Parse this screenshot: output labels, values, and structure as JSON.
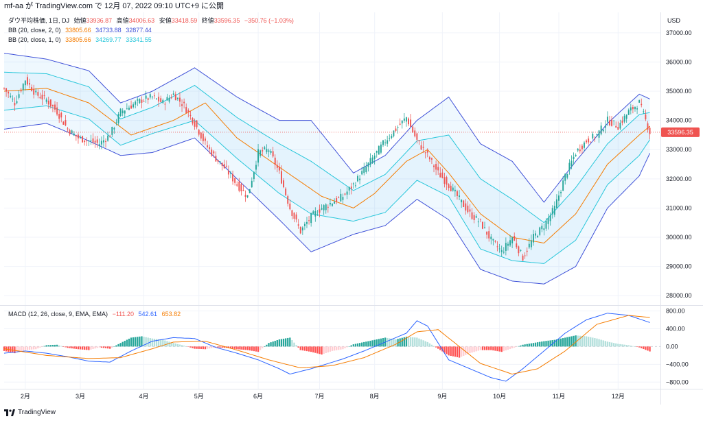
{
  "header": {
    "text": "mf-aa が TradingView.com で 12月 07, 2022 09:10 UTC+9 に公開"
  },
  "legend": {
    "main": {
      "name": "ダウ平均株価, 1日, DJ",
      "open_label": "始値",
      "open": "33936.87",
      "high_label": "高値",
      "high": "34006.63",
      "low_label": "安値",
      "low": "33418.59",
      "close_label": "終値",
      "close": "33596.35",
      "change": "−350.76 (−1.03%)"
    },
    "bb2": {
      "name": "BB (20, close, 2, 0)",
      "basis": "33805.66",
      "upper": "34733.88",
      "lower": "32877.44"
    },
    "bb1": {
      "name": "BB (20, close, 1, 0)",
      "basis": "33805.66",
      "upper": "34269.77",
      "lower": "33341.55"
    },
    "macd": {
      "name": "MACD (12, 26, close, 9, EMA, EMA)",
      "hist": "−111.20",
      "macd": "542.61",
      "signal": "653.82"
    }
  },
  "colors": {
    "up": "#26a69a",
    "down": "#ef5350",
    "bb_outer": "#3f51d8",
    "bb_inner": "#26c6da",
    "basis": "#f57c00",
    "macd": "#2962ff",
    "signal": "#f57c00",
    "hist_up": "#26a69a",
    "hist_up_light": "#b2dfdb",
    "hist_down": "#ff5252",
    "hist_down_light": "#ffcdd2",
    "price_tag": "#ef5350"
  },
  "chart_data": [
    {
      "type": "candlestick",
      "title": "ダウ平均株価, 1日, DJ",
      "ylabel": "USD",
      "ylim": [
        27700,
        37700
      ],
      "y_ticks": [
        "37000.00",
        "36000.00",
        "35000.00",
        "34000.00",
        "33000.00",
        "32000.00",
        "31000.00",
        "30000.00",
        "29000.00",
        "28000.00"
      ],
      "x_ticks": [
        "2月",
        "3月",
        "4月",
        "5月",
        "6月",
        "7月",
        "8月",
        "9月",
        "10月",
        "11月",
        "12月"
      ],
      "last_price": "33596.35",
      "close_path": [
        [
          0,
          35100
        ],
        [
          5,
          34600
        ],
        [
          10,
          35400
        ],
        [
          15,
          34900
        ],
        [
          20,
          34700
        ],
        [
          25,
          34300
        ],
        [
          30,
          33700
        ],
        [
          35,
          33400
        ],
        [
          40,
          33300
        ],
        [
          45,
          33200
        ],
        [
          50,
          33500
        ],
        [
          55,
          34300
        ],
        [
          60,
          34500
        ],
        [
          65,
          34700
        ],
        [
          70,
          34800
        ],
        [
          75,
          34600
        ],
        [
          80,
          34900
        ],
        [
          85,
          34500
        ],
        [
          90,
          33900
        ],
        [
          95,
          33200
        ],
        [
          100,
          32700
        ],
        [
          105,
          32300
        ],
        [
          110,
          31800
        ],
        [
          115,
          31400
        ],
        [
          120,
          32900
        ],
        [
          125,
          33000
        ],
        [
          130,
          32200
        ],
        [
          135,
          31000
        ],
        [
          140,
          30200
        ],
        [
          145,
          30700
        ],
        [
          150,
          31000
        ],
        [
          155,
          31200
        ],
        [
          160,
          31400
        ],
        [
          165,
          31800
        ],
        [
          170,
          32300
        ],
        [
          175,
          32800
        ],
        [
          180,
          33300
        ],
        [
          185,
          33700
        ],
        [
          190,
          34100
        ],
        [
          195,
          33300
        ],
        [
          200,
          32800
        ],
        [
          205,
          32200
        ],
        [
          210,
          31800
        ],
        [
          215,
          31300
        ],
        [
          220,
          30800
        ],
        [
          225,
          30500
        ],
        [
          230,
          29900
        ],
        [
          235,
          29500
        ],
        [
          240,
          30000
        ],
        [
          245,
          29300
        ],
        [
          250,
          30000
        ],
        [
          255,
          30400
        ],
        [
          260,
          31000
        ],
        [
          265,
          32100
        ],
        [
          270,
          32900
        ],
        [
          275,
          33300
        ],
        [
          280,
          33500
        ],
        [
          285,
          34000
        ],
        [
          290,
          33800
        ],
        [
          295,
          34300
        ],
        [
          300,
          34600
        ],
        [
          305,
          33596
        ]
      ],
      "bb_basis": [
        [
          0,
          35000
        ],
        [
          20,
          35100
        ],
        [
          40,
          34600
        ],
        [
          60,
          33500
        ],
        [
          80,
          34000
        ],
        [
          95,
          34600
        ],
        [
          110,
          33400
        ],
        [
          130,
          32400
        ],
        [
          150,
          31400
        ],
        [
          165,
          31000
        ],
        [
          175,
          31500
        ],
        [
          190,
          32600
        ],
        [
          200,
          33000
        ],
        [
          210,
          32200
        ],
        [
          225,
          30800
        ],
        [
          240,
          30000
        ],
        [
          255,
          29800
        ],
        [
          270,
          30800
        ],
        [
          285,
          32500
        ],
        [
          300,
          33500
        ],
        [
          305,
          33806
        ]
      ],
      "bb_outer_upper": [
        [
          0,
          36300
        ],
        [
          20,
          36100
        ],
        [
          40,
          35700
        ],
        [
          55,
          34600
        ],
        [
          70,
          35000
        ],
        [
          90,
          35800
        ],
        [
          110,
          34800
        ],
        [
          130,
          34000
        ],
        [
          145,
          34000
        ],
        [
          165,
          32200
        ],
        [
          180,
          32800
        ],
        [
          195,
          34000
        ],
        [
          210,
          34800
        ],
        [
          225,
          33200
        ],
        [
          240,
          32600
        ],
        [
          255,
          31200
        ],
        [
          270,
          32600
        ],
        [
          285,
          33900
        ],
        [
          300,
          34900
        ],
        [
          305,
          34734
        ]
      ],
      "bb_outer_lower": [
        [
          0,
          33700
        ],
        [
          20,
          33900
        ],
        [
          40,
          33300
        ],
        [
          55,
          32800
        ],
        [
          70,
          32900
        ],
        [
          90,
          33400
        ],
        [
          110,
          32000
        ],
        [
          130,
          30600
        ],
        [
          145,
          29500
        ],
        [
          165,
          30100
        ],
        [
          180,
          30400
        ],
        [
          195,
          31300
        ],
        [
          210,
          30600
        ],
        [
          225,
          28900
        ],
        [
          240,
          28500
        ],
        [
          255,
          28400
        ],
        [
          270,
          29000
        ],
        [
          285,
          31000
        ],
        [
          300,
          32100
        ],
        [
          305,
          32877
        ]
      ],
      "bb_inner_upper": [
        [
          0,
          35650
        ],
        [
          20,
          35600
        ],
        [
          40,
          35150
        ],
        [
          55,
          34050
        ],
        [
          70,
          34450
        ],
        [
          90,
          35200
        ],
        [
          110,
          34100
        ],
        [
          130,
          33200
        ],
        [
          145,
          32600
        ],
        [
          165,
          31600
        ],
        [
          180,
          32150
        ],
        [
          195,
          33300
        ],
        [
          210,
          33500
        ],
        [
          225,
          32000
        ],
        [
          240,
          31300
        ],
        [
          255,
          30500
        ],
        [
          270,
          31700
        ],
        [
          285,
          33200
        ],
        [
          300,
          34200
        ],
        [
          305,
          34270
        ]
      ],
      "bb_inner_lower": [
        [
          0,
          34350
        ],
        [
          20,
          34500
        ],
        [
          40,
          34050
        ],
        [
          55,
          33150
        ],
        [
          70,
          33550
        ],
        [
          90,
          34000
        ],
        [
          110,
          32700
        ],
        [
          130,
          31500
        ],
        [
          145,
          30800
        ],
        [
          165,
          30550
        ],
        [
          180,
          30850
        ],
        [
          195,
          31950
        ],
        [
          210,
          31400
        ],
        [
          225,
          29600
        ],
        [
          240,
          29200
        ],
        [
          255,
          29100
        ],
        [
          270,
          29900
        ],
        [
          285,
          31800
        ],
        [
          300,
          32800
        ],
        [
          305,
          33342
        ]
      ]
    },
    {
      "type": "macd",
      "title": "MACD (12, 26, close, 9, EMA, EMA)",
      "ylim": [
        -950,
        900
      ],
      "y_ticks": [
        "800.00",
        "400.00",
        "0.00",
        "−400.00",
        "−800.00"
      ],
      "macd_line": [
        [
          0,
          -150
        ],
        [
          10,
          -100
        ],
        [
          20,
          -150
        ],
        [
          30,
          -230
        ],
        [
          40,
          -330
        ],
        [
          50,
          -350
        ],
        [
          60,
          -100
        ],
        [
          70,
          120
        ],
        [
          80,
          200
        ],
        [
          90,
          180
        ],
        [
          100,
          -20
        ],
        [
          110,
          -150
        ],
        [
          120,
          -300
        ],
        [
          130,
          -500
        ],
        [
          135,
          -620
        ],
        [
          145,
          -500
        ],
        [
          160,
          -280
        ],
        [
          170,
          -100
        ],
        [
          180,
          100
        ],
        [
          190,
          300
        ],
        [
          195,
          580
        ],
        [
          200,
          460
        ],
        [
          210,
          -300
        ],
        [
          220,
          -500
        ],
        [
          230,
          -700
        ],
        [
          237,
          -780
        ],
        [
          245,
          -500
        ],
        [
          255,
          -100
        ],
        [
          265,
          300
        ],
        [
          275,
          600
        ],
        [
          285,
          750
        ],
        [
          295,
          700
        ],
        [
          305,
          540
        ]
      ],
      "signal_line": [
        [
          0,
          -50
        ],
        [
          20,
          -200
        ],
        [
          40,
          -270
        ],
        [
          55,
          -250
        ],
        [
          70,
          -50
        ],
        [
          80,
          100
        ],
        [
          95,
          120
        ],
        [
          110,
          -80
        ],
        [
          125,
          -300
        ],
        [
          140,
          -480
        ],
        [
          155,
          -430
        ],
        [
          170,
          -250
        ],
        [
          185,
          50
        ],
        [
          195,
          330
        ],
        [
          205,
          380
        ],
        [
          215,
          0
        ],
        [
          225,
          -380
        ],
        [
          240,
          -620
        ],
        [
          252,
          -500
        ],
        [
          265,
          -100
        ],
        [
          280,
          500
        ],
        [
          295,
          700
        ],
        [
          305,
          654
        ]
      ],
      "histogram": [
        [
          0,
          -100
        ],
        [
          5,
          -150
        ],
        [
          10,
          -80
        ],
        [
          15,
          -60
        ],
        [
          20,
          30
        ],
        [
          25,
          40
        ],
        [
          30,
          -30
        ],
        [
          35,
          -60
        ],
        [
          40,
          -80
        ],
        [
          45,
          -20
        ],
        [
          50,
          -50
        ],
        [
          55,
          80
        ],
        [
          60,
          200
        ],
        [
          65,
          230
        ],
        [
          70,
          180
        ],
        [
          75,
          150
        ],
        [
          80,
          80
        ],
        [
          85,
          20
        ],
        [
          90,
          -50
        ],
        [
          95,
          -60
        ],
        [
          100,
          -20
        ],
        [
          105,
          -30
        ],
        [
          110,
          -60
        ],
        [
          115,
          -80
        ],
        [
          120,
          -120
        ],
        [
          125,
          80
        ],
        [
          130,
          160
        ],
        [
          135,
          200
        ],
        [
          140,
          -80
        ],
        [
          145,
          -120
        ],
        [
          150,
          -180
        ],
        [
          155,
          -100
        ],
        [
          160,
          -60
        ],
        [
          165,
          50
        ],
        [
          170,
          100
        ],
        [
          175,
          150
        ],
        [
          180,
          200
        ],
        [
          185,
          160
        ],
        [
          190,
          220
        ],
        [
          195,
          200
        ],
        [
          200,
          100
        ],
        [
          205,
          -50
        ],
        [
          210,
          -200
        ],
        [
          215,
          -250
        ],
        [
          220,
          -150
        ],
        [
          225,
          -80
        ],
        [
          230,
          -80
        ],
        [
          235,
          -120
        ],
        [
          240,
          -40
        ],
        [
          245,
          40
        ],
        [
          250,
          80
        ],
        [
          255,
          120
        ],
        [
          260,
          150
        ],
        [
          265,
          200
        ],
        [
          270,
          250
        ],
        [
          275,
          230
        ],
        [
          280,
          180
        ],
        [
          285,
          110
        ],
        [
          290,
          60
        ],
        [
          295,
          30
        ],
        [
          300,
          -20
        ],
        [
          305,
          -111
        ]
      ]
    }
  ],
  "footer": {
    "logo_text": "TradingView"
  }
}
